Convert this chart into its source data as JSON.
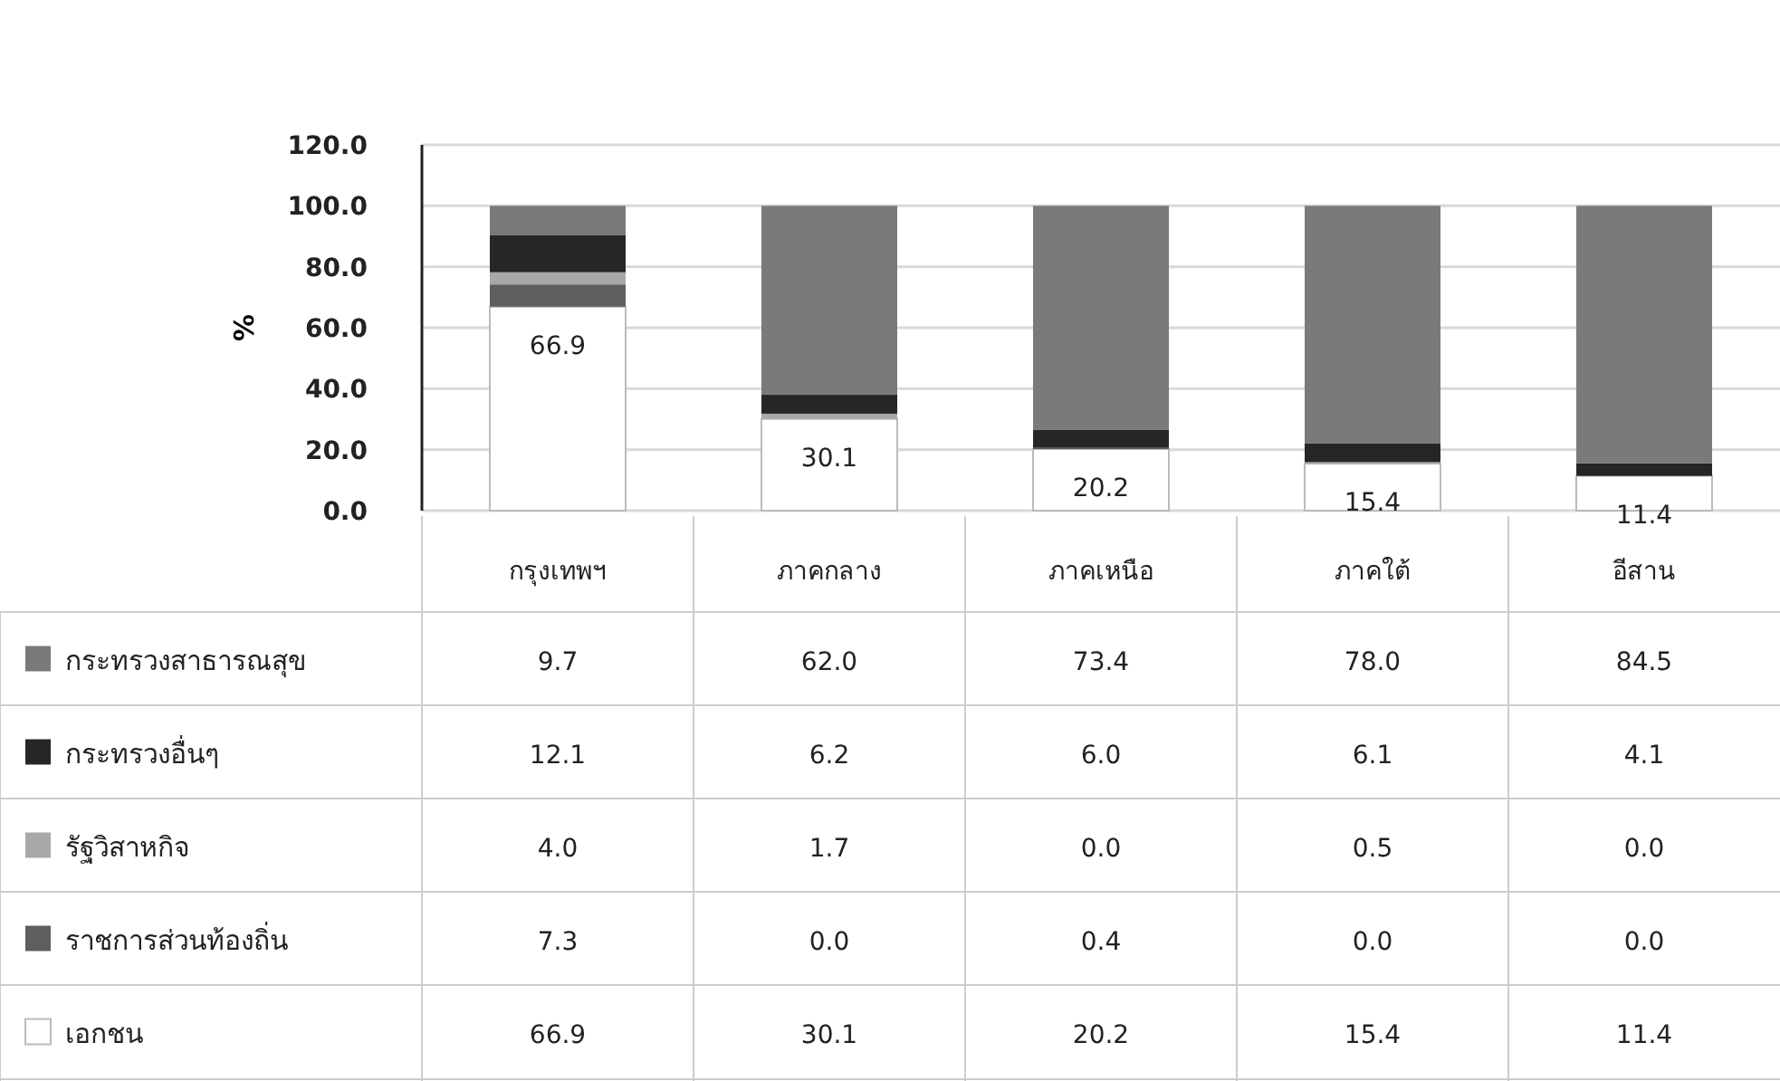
{
  "chart_data": {
    "type": "bar",
    "stacked": true,
    "ylabel": "%",
    "categories": [
      "กรุงเทพฯ",
      "ภาคกลาง",
      "ภาคเหนือ",
      "ภาคใต้",
      "อีสาน"
    ],
    "series": [
      {
        "name": "เอกชน",
        "color": "#ffffff",
        "values": [
          66.9,
          30.1,
          20.2,
          15.4,
          11.4
        ],
        "value_labels": [
          "66.9",
          "30.1",
          "20.2",
          "15.4",
          "11.4"
        ]
      },
      {
        "name": "ราชการส่วนท้องถิ่น",
        "color": "#5e5e5e",
        "values": [
          7.3,
          0.0,
          0.4,
          0.0,
          0.0
        ],
        "value_labels": [
          "7.3",
          "0.0",
          "0.4",
          "0.0",
          "0.0"
        ]
      },
      {
        "name": "รัฐวิสาหกิจ",
        "color": "#a8a8a8",
        "values": [
          4.0,
          1.7,
          0.0,
          0.5,
          0.0
        ],
        "value_labels": [
          "4.0",
          "1.7",
          "0.0",
          "0.5",
          "0.0"
        ]
      },
      {
        "name": "กระทรวงอื่นๆ",
        "color": "#262626",
        "values": [
          12.1,
          6.2,
          6.0,
          6.1,
          4.1
        ],
        "value_labels": [
          "12.1",
          "6.2",
          "6.0",
          "6.1",
          "4.1"
        ]
      },
      {
        "name": "กระทรวงสาธารณสุข",
        "color": "#7a7a7a",
        "values": [
          9.7,
          62.0,
          73.4,
          78.0,
          84.5
        ],
        "value_labels": [
          "9.7",
          "62.0",
          "73.4",
          "78.0",
          "84.5"
        ]
      }
    ],
    "ylim": [
      0,
      120
    ],
    "yticks": [
      {
        "value": 0,
        "label": "0.0"
      },
      {
        "value": 20,
        "label": "20.0"
      },
      {
        "value": 40,
        "label": "40.0"
      },
      {
        "value": 60,
        "label": "60.0"
      },
      {
        "value": 80,
        "label": "80.0"
      },
      {
        "value": 100,
        "label": "100.0"
      },
      {
        "value": 120,
        "label": "120.0"
      }
    ],
    "grid": "y",
    "legend": "bottom"
  }
}
